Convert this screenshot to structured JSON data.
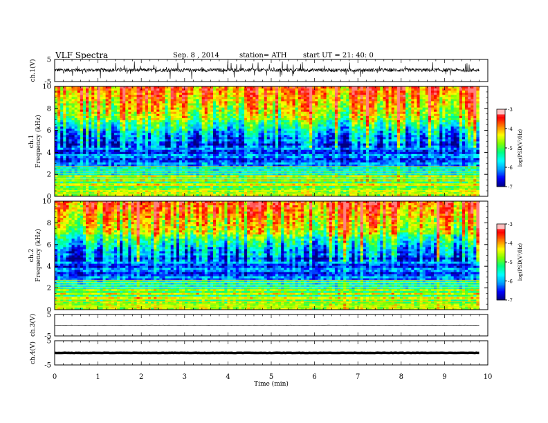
{
  "header": {
    "title": "VLF  Spectra",
    "date": "Sep. 8  , 2014",
    "station": "station= ATH",
    "start": "start  UT  =    21: 40: 0"
  },
  "chart_data": [
    {
      "type": "line",
      "panel": "ch1-waveform",
      "ylabel": "ch.1(V)",
      "ylim": [
        -5,
        5
      ],
      "y_ticks": [
        "5",
        "-5"
      ],
      "series": [
        {
          "values_summary": "noisy waveform centred near 0 V with spikes to about -3 V"
        }
      ],
      "color": "#000000"
    },
    {
      "type": "heatmap",
      "panel": "ch1-spectrogram",
      "ylabel": "ch.1\nFrequency  (kHz)",
      "ylim": [
        0,
        10
      ],
      "y_ticks": [
        "0",
        "2",
        "4",
        "6",
        "8",
        "10"
      ],
      "colorbar": {
        "label": "log(PSD(V²/Hz)",
        "range": [
          -7,
          -3
        ],
        "ticks": [
          "-3",
          "-4",
          "-5",
          "-6",
          "-7"
        ]
      },
      "description_bands": [
        {
          "freq_khz": [
            0,
            2
          ],
          "log_psd": -4.5
        },
        {
          "freq_khz": [
            2,
            5
          ],
          "log_psd": -6.2
        },
        {
          "freq_khz": [
            5,
            7
          ],
          "log_psd": -5.2
        },
        {
          "freq_khz": [
            7,
            10
          ],
          "log_psd": -3.8
        }
      ]
    },
    {
      "type": "heatmap",
      "panel": "ch2-spectrogram",
      "ylabel": "ch.2\nFrequency  (kHz)",
      "ylim": [
        0,
        10
      ],
      "y_ticks": [
        "0",
        "2",
        "4",
        "6",
        "8",
        "10"
      ],
      "colorbar": {
        "label": "log(PSD(V²/Hz)",
        "range": [
          -7,
          -3
        ],
        "ticks": [
          "-3",
          "-4",
          "-5",
          "-6",
          "-7"
        ]
      }
    },
    {
      "type": "line",
      "panel": "ch3-waveform",
      "ylabel": "ch.3(V)",
      "ylim": [
        -5,
        5
      ],
      "y_ticks": [
        "5",
        "-5"
      ],
      "series": [
        {
          "values_summary": "flat line near 0 V"
        }
      ]
    },
    {
      "type": "line",
      "panel": "ch4-waveform",
      "ylabel": "ch.4(V)",
      "ylim": [
        -5,
        5
      ],
      "y_ticks": [
        "5",
        "-5"
      ],
      "series": [
        {
          "values_summary": "thick flat line near 0 V"
        }
      ]
    }
  ],
  "x_axis": {
    "label": "Time  (min)",
    "range": [
      0,
      10
    ],
    "data_end": 9.8,
    "ticks": [
      "0",
      "1",
      "2",
      "3",
      "4",
      "5",
      "6",
      "7",
      "8",
      "9",
      "10"
    ]
  },
  "colors": {
    "axis": "#000000",
    "colormap": [
      "#000080",
      "#0000ff",
      "#00a0ff",
      "#00ffff",
      "#00ff80",
      "#80ff00",
      "#ffff00",
      "#ff8000",
      "#ff0000",
      "#ff8080"
    ]
  }
}
